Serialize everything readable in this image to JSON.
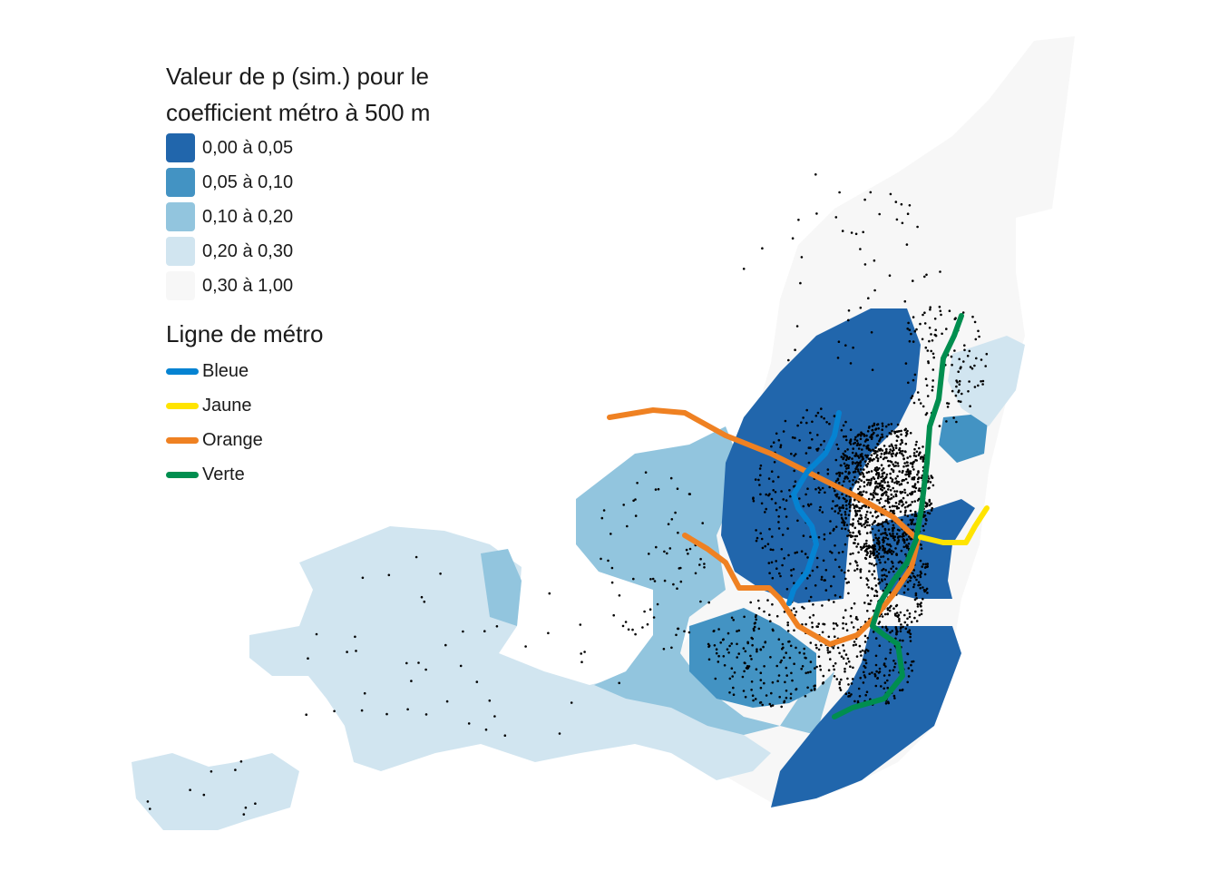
{
  "legend_p": {
    "title": "Valeur de p (sim.) pour le coefficient métro à 500 m",
    "items": [
      {
        "label": "0,00 à 0,05",
        "color": "#2166ac"
      },
      {
        "label": "0,05 à 0,10",
        "color": "#4393c3"
      },
      {
        "label": "0,10 à 0,20",
        "color": "#92c5de"
      },
      {
        "label": "0,20 à 0,30",
        "color": "#d1e5f0"
      },
      {
        "label": "0,30 à 1,00",
        "color": "#f7f7f7"
      }
    ]
  },
  "legend_metro": {
    "title": "Ligne de métro",
    "items": [
      {
        "label": "Bleue",
        "color": "#0583d2"
      },
      {
        "label": "Jaune",
        "color": "#ffe400"
      },
      {
        "label": "Orange",
        "color": "#ef8122"
      },
      {
        "label": "Verte",
        "color": "#008e4f"
      }
    ]
  }
}
